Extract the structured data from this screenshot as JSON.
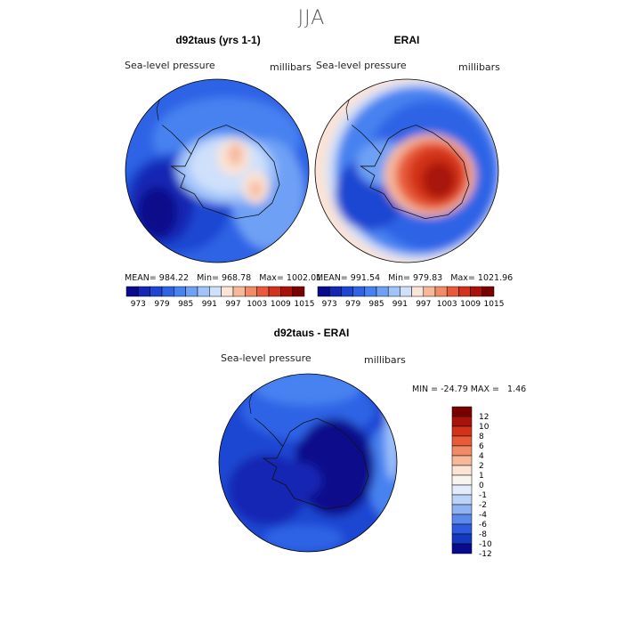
{
  "figure": {
    "title": "JJA",
    "color_palette": [
      "#0a0a8c",
      "#1428b4",
      "#1e46d2",
      "#2d64e6",
      "#4682f0",
      "#6ea0f5",
      "#a0c3fa",
      "#cfe0fb",
      "#fbe3d6",
      "#f7b89a",
      "#f08a67",
      "#e85a3a",
      "#d23219",
      "#a81208",
      "#7a0000"
    ]
  },
  "panels": [
    {
      "title": "d92taus (yrs 1-1)",
      "variable": "Sea-level pressure",
      "units": "millibars",
      "stats": {
        "mean_label": "MEAN=",
        "mean": "984.22",
        "min_label": "Min=",
        "min": "968.78",
        "max_label": "Max=",
        "max": "1002.01"
      }
    },
    {
      "title": "ERAI",
      "variable": "Sea-level pressure",
      "units": "millibars",
      "stats": {
        "mean_label": "MEAN=",
        "mean": "991.54",
        "min_label": "Min=",
        "min": "979.83",
        "max_label": "Max=",
        "max": "1021.96"
      }
    },
    {
      "title": "d92taus - ERAI",
      "variable": "Sea-level pressure",
      "units": "millibars",
      "stats": {
        "min_label": "MIN =",
        "min": "-24.79",
        "max_label": "MAX =",
        "max": "1.46"
      }
    }
  ],
  "chart_data": [
    {
      "type": "heatmap",
      "projection": "south polar stereographic",
      "title": "d92taus (yrs 1-1)",
      "variable": "Sea-level pressure",
      "units": "millibars",
      "mean": 984.22,
      "min": 968.78,
      "max": 1002.01,
      "colorbar_ticks": [
        "973",
        "979",
        "985",
        "991",
        "997",
        "1003",
        "1009",
        "1015"
      ],
      "levels": [
        970,
        973,
        976,
        979,
        982,
        985,
        988,
        991,
        994,
        997,
        1000,
        1003,
        1006,
        1009,
        1012,
        1015,
        1018
      ],
      "field_regions": [
        {
          "region": "background ocean",
          "level_index": 3
        },
        {
          "region": "ring around continent",
          "level_index": 4
        },
        {
          "region": "Weddell / Indian sector",
          "level_index": 5
        },
        {
          "region": "Ross / Amundsen low",
          "level_index": 2
        },
        {
          "region": "deep Amundsen low core",
          "level_index": 0
        },
        {
          "region": "Antarctic plateau",
          "level_index": 7
        },
        {
          "region": "East Antarctica high",
          "level_index": 8
        },
        {
          "region": "plateau maxima",
          "level_index": 9
        }
      ]
    },
    {
      "type": "heatmap",
      "projection": "south polar stereographic",
      "title": "ERAI",
      "variable": "Sea-level pressure",
      "units": "millibars",
      "mean": 991.54,
      "min": 979.83,
      "max": 1021.96,
      "colorbar_ticks": [
        "973",
        "979",
        "985",
        "991",
        "997",
        "1003",
        "1009",
        "1015"
      ],
      "levels": [
        970,
        973,
        976,
        979,
        982,
        985,
        988,
        991,
        994,
        997,
        1000,
        1003,
        1006,
        1009,
        1012,
        1015,
        1018
      ],
      "field_regions": [
        {
          "region": "background ocean",
          "level_index": 4
        },
        {
          "region": "circumpolar trough",
          "level_index": 3
        },
        {
          "region": "Amundsen low",
          "level_index": 2
        },
        {
          "region": "mid-latitude rim",
          "level_index": 7
        },
        {
          "region": "outer rim",
          "level_index": 8
        },
        {
          "region": "coastal Antarctica",
          "level_index": 9
        },
        {
          "region": "Antarctic interior",
          "level_index": 11
        },
        {
          "region": "plateau",
          "level_index": 12
        },
        {
          "region": "plateau maxima",
          "level_index": 13
        }
      ]
    },
    {
      "type": "heatmap",
      "projection": "south polar stereographic",
      "title": "d92taus - ERAI",
      "variable": "Sea-level pressure",
      "units": "millibars",
      "min": -24.79,
      "max": 1.46,
      "colorbar_ticks": [
        "12",
        "10",
        "8",
        "6",
        "4",
        "2",
        "1",
        "0",
        "-1",
        "-2",
        "-4",
        "-6",
        "-8",
        "-10",
        "-12"
      ],
      "levels": [
        -12,
        -10,
        -8,
        -6,
        -4,
        -2,
        -1,
        0,
        1,
        2,
        4,
        6,
        8,
        10,
        12
      ],
      "field_regions": [
        {
          "region": "background ocean",
          "level_index": 2
        },
        {
          "region": "outer ring",
          "level_index": 3
        },
        {
          "region": "lower-latitude band",
          "level_index": 4
        },
        {
          "region": "Amundsen region",
          "level_index": 1
        },
        {
          "region": "East Antarctica",
          "level_index": 0
        },
        {
          "region": "rim near zero",
          "level_index": 6
        }
      ]
    }
  ]
}
